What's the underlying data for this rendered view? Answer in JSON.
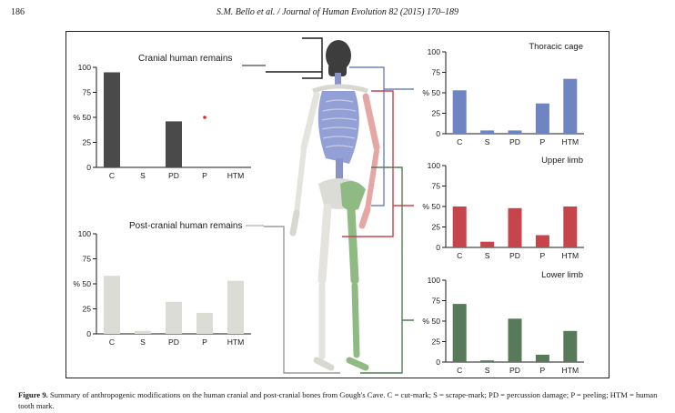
{
  "header": {
    "page_number": "186",
    "journal": "S.M. Bello et al. / Journal of Human Evolution 82 (2015) 170–189"
  },
  "caption": {
    "label": "Figure 9.",
    "text": "Summary of anthropogenic modifications on the human cranial and post-cranial bones from Gough's Cave. C = cut-mark; S = scrape-mark; PD = percussion damage; P = peeling; HTM = human tooth mark."
  },
  "colors": {
    "cranial": "#4a4a4a",
    "postcranial": "#dcdcd6",
    "thoracic": "#6f84c2",
    "upper_limb": "#c5454b",
    "lower_limb": "#577b58",
    "marker": "#e0261f",
    "skull": "#3d3d3d",
    "bone": "#e4e3dd"
  },
  "chart_data": [
    {
      "id": "cranial",
      "type": "bar",
      "title": "Cranial human remains",
      "categories": [
        "C",
        "S",
        "PD",
        "P",
        "HTM"
      ],
      "values": [
        95,
        0,
        46,
        0,
        0
      ],
      "marker_point": {
        "category": "P",
        "value": 50
      },
      "ylabel": "%",
      "ylim": [
        0,
        100
      ],
      "yticks": [
        0,
        25,
        50,
        75,
        100
      ]
    },
    {
      "id": "postcranial",
      "type": "bar",
      "title": "Post-cranial human remains",
      "categories": [
        "C",
        "S",
        "PD",
        "P",
        "HTM"
      ],
      "values": [
        58,
        3,
        32,
        21,
        53
      ],
      "ylabel": "%",
      "ylim": [
        0,
        100
      ],
      "yticks": [
        0,
        25,
        50,
        75,
        100
      ]
    },
    {
      "id": "thoracic",
      "type": "bar",
      "title": "Thoracic cage",
      "categories": [
        "C",
        "S",
        "PD",
        "P",
        "HTM"
      ],
      "values": [
        53,
        4,
        4,
        37,
        67
      ],
      "ylabel": "%",
      "ylim": [
        0,
        100
      ],
      "yticks": [
        0,
        25,
        50,
        75,
        100
      ]
    },
    {
      "id": "upper",
      "type": "bar",
      "title": "Upper limb",
      "categories": [
        "C",
        "S",
        "PD",
        "P",
        "HTM"
      ],
      "values": [
        50,
        7,
        48,
        15,
        50
      ],
      "ylabel": "%",
      "ylim": [
        0,
        100
      ],
      "yticks": [
        0,
        25,
        50,
        75,
        100
      ]
    },
    {
      "id": "lower",
      "type": "bar",
      "title": "Lower limb",
      "categories": [
        "C",
        "S",
        "PD",
        "P",
        "HTM"
      ],
      "values": [
        71,
        2,
        53,
        9,
        38
      ],
      "ylabel": "%",
      "ylim": [
        0,
        100
      ],
      "yticks": [
        0,
        25,
        50,
        75,
        100
      ]
    }
  ]
}
